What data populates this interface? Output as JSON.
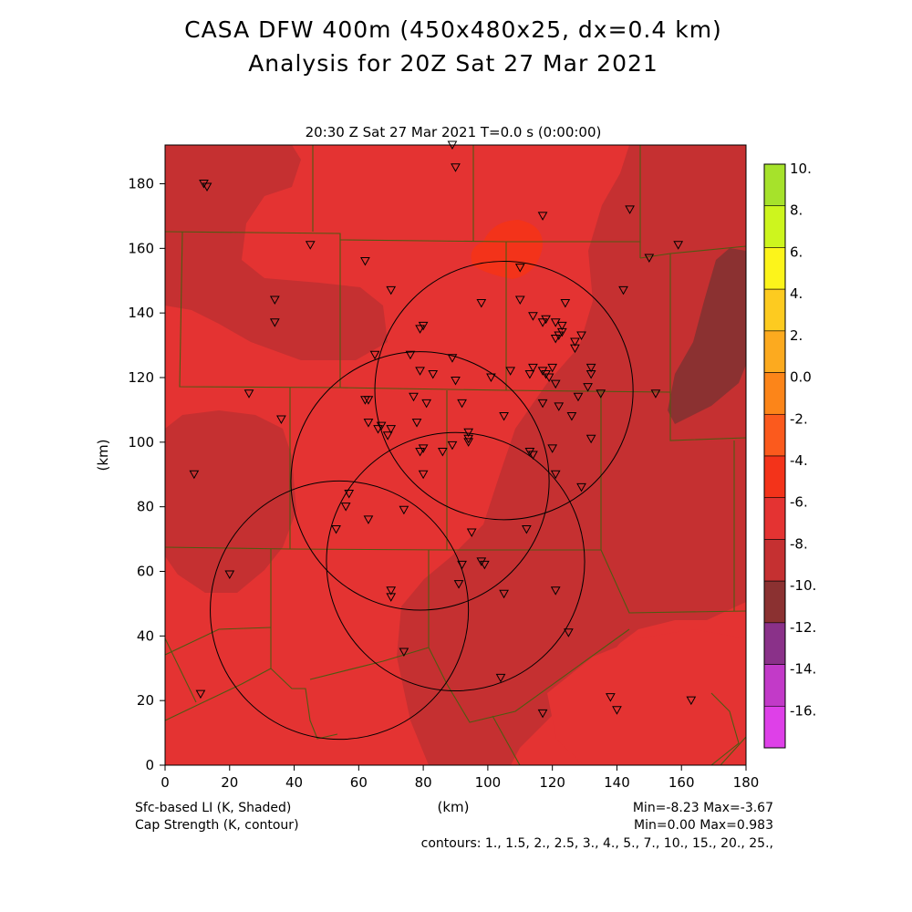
{
  "header": {
    "title_line1": "CASA DFW 400m (450x480x25, dx=0.4 km)",
    "title_line2": "Analysis for 20Z Sat 27 Mar 2021",
    "subtitle": "20:30 Z Sat 27 Mar 2021    T=0.0 s (0:00:00)"
  },
  "footer": {
    "shade_label": "Sfc-based LI (K, Shaded)",
    "contour_label": "Cap Strength (K, contour)",
    "minmax_shade": "Min=-8.23 Max=-3.67",
    "minmax_contour": "Min=0.00 Max=0.983",
    "contours": "contours: 1., 1.5, 2., 2.5, 3., 4., 5., 7., 10., 15., 20., 25.,"
  },
  "chart_data": {
    "type": "heatmap",
    "xlabel": "(km)",
    "ylabel": "(km)",
    "xlim": [
      0,
      180
    ],
    "ylim": [
      0,
      192
    ],
    "x_ticks": [
      0,
      20,
      40,
      60,
      80,
      100,
      120,
      140,
      160,
      180
    ],
    "y_ticks": [
      0,
      20,
      40,
      60,
      80,
      100,
      120,
      140,
      160,
      180
    ],
    "colorbar": {
      "levels": [
        10,
        8,
        6,
        4,
        2,
        0,
        -2,
        -4,
        -6,
        -8,
        -10,
        -12,
        -14,
        -16
      ],
      "labels": [
        "10.",
        "8.",
        "6.",
        "4.",
        "2.",
        "0.0",
        "-2.",
        "-4.",
        "-6.",
        "-8.",
        "-10.",
        "-12.",
        "-14.",
        "-16."
      ],
      "colors": [
        "#a6e22b",
        "#cdf51e",
        "#fcf41b",
        "#fdcb20",
        "#fcaa1f",
        "#fc8519",
        "#fb5a1d",
        "#f3331a",
        "#e43332",
        "#c53031",
        "#8b3131",
        "#8a3189",
        "#c23ac8",
        "#de40e8"
      ]
    },
    "radar_circles": [
      {
        "cx": 105,
        "cy": 116,
        "r": 40
      },
      {
        "cx": 79,
        "cy": 88,
        "r": 40
      },
      {
        "cx": 54,
        "cy": 48,
        "r": 40
      },
      {
        "cx": 90,
        "cy": 63,
        "r": 40
      }
    ],
    "stations": [
      [
        89,
        192
      ],
      [
        12,
        180
      ],
      [
        13,
        179
      ],
      [
        90,
        185
      ],
      [
        117,
        170
      ],
      [
        144,
        172
      ],
      [
        45,
        161
      ],
      [
        159,
        161
      ],
      [
        150,
        157
      ],
      [
        62,
        156
      ],
      [
        110,
        154
      ],
      [
        70,
        147
      ],
      [
        142,
        147
      ],
      [
        34,
        144
      ],
      [
        98,
        143
      ],
      [
        110,
        144
      ],
      [
        124,
        143
      ],
      [
        34,
        137
      ],
      [
        114,
        139
      ],
      [
        118,
        138
      ],
      [
        121,
        137
      ],
      [
        117,
        137
      ],
      [
        123,
        136
      ],
      [
        123,
        134
      ],
      [
        122,
        133
      ],
      [
        121,
        132
      ],
      [
        129,
        133
      ],
      [
        127,
        131
      ],
      [
        127,
        129
      ],
      [
        80,
        136
      ],
      [
        79,
        135
      ],
      [
        76,
        127
      ],
      [
        89,
        126
      ],
      [
        65,
        127
      ],
      [
        132,
        123
      ],
      [
        132,
        121
      ],
      [
        79,
        122
      ],
      [
        83,
        121
      ],
      [
        90,
        119
      ],
      [
        101,
        120
      ],
      [
        107,
        122
      ],
      [
        113,
        121
      ],
      [
        114,
        123
      ],
      [
        117,
        122
      ],
      [
        120,
        123
      ],
      [
        118,
        121
      ],
      [
        119,
        120
      ],
      [
        121,
        118
      ],
      [
        131,
        117
      ],
      [
        135,
        115
      ],
      [
        128,
        114
      ],
      [
        152,
        115
      ],
      [
        26,
        115
      ],
      [
        77,
        114
      ],
      [
        62,
        113
      ],
      [
        63,
        113
      ],
      [
        81,
        112
      ],
      [
        92,
        112
      ],
      [
        117,
        112
      ],
      [
        122,
        111
      ],
      [
        126,
        108
      ],
      [
        36,
        107
      ],
      [
        63,
        106
      ],
      [
        67,
        105
      ],
      [
        66,
        104
      ],
      [
        70,
        104
      ],
      [
        69,
        102
      ],
      [
        78,
        106
      ],
      [
        94,
        103
      ],
      [
        105,
        108
      ],
      [
        89,
        99
      ],
      [
        94,
        101
      ],
      [
        94,
        100
      ],
      [
        80,
        98
      ],
      [
        79,
        97
      ],
      [
        86,
        97
      ],
      [
        113,
        97
      ],
      [
        114,
        96
      ],
      [
        120,
        98
      ],
      [
        132,
        101
      ],
      [
        9,
        90
      ],
      [
        80,
        90
      ],
      [
        121,
        90
      ],
      [
        129,
        86
      ],
      [
        57,
        84
      ],
      [
        56,
        80
      ],
      [
        74,
        79
      ],
      [
        63,
        76
      ],
      [
        53,
        73
      ],
      [
        95,
        72
      ],
      [
        112,
        73
      ],
      [
        92,
        62
      ],
      [
        98,
        63
      ],
      [
        99,
        62
      ],
      [
        20,
        59
      ],
      [
        91,
        56
      ],
      [
        70,
        54
      ],
      [
        70,
        52
      ],
      [
        105,
        53
      ],
      [
        121,
        54
      ],
      [
        125,
        41
      ],
      [
        74,
        35
      ],
      [
        104,
        27
      ],
      [
        11,
        22
      ],
      [
        138,
        21
      ],
      [
        163,
        20
      ],
      [
        140,
        17
      ],
      [
        117,
        16
      ]
    ]
  }
}
